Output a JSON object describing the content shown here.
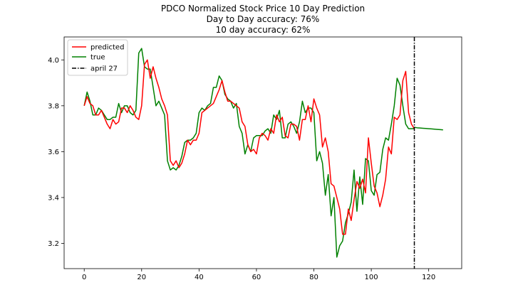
{
  "chart_data": {
    "type": "line",
    "title_lines": [
      "PDCO Normalized Stock Price 10 Day Prediction",
      "Day to Day accuracy: 76%",
      "10 day accuracy: 62%"
    ],
    "xlabel": "",
    "ylabel": "",
    "xlim": [
      -7,
      131.5
    ],
    "ylim": [
      3.09,
      4.1
    ],
    "x_ticks": [
      0,
      20,
      40,
      60,
      80,
      100,
      120
    ],
    "y_ticks": [
      3.2,
      3.4,
      3.6,
      3.8,
      4.0
    ],
    "y_tick_labels": [
      "3.2",
      "3.4",
      "3.6",
      "3.8",
      "4.0"
    ],
    "grid": false,
    "legend_position": "top-left",
    "vline": {
      "name": "april 27",
      "x": 115,
      "color": "#000000",
      "style": "dash-dot"
    },
    "series": [
      {
        "name": "predicted",
        "color": "#ff0000",
        "x": [
          0,
          1,
          2,
          3,
          4,
          5,
          6,
          7,
          8,
          9,
          10,
          11,
          12,
          13,
          14,
          15,
          16,
          17,
          18,
          19,
          20,
          21,
          22,
          23,
          24,
          25,
          26,
          27,
          28,
          29,
          30,
          31,
          32,
          33,
          34,
          35,
          36,
          37,
          38,
          39,
          40,
          41,
          42,
          43,
          44,
          45,
          46,
          47,
          48,
          49,
          50,
          51,
          52,
          53,
          54,
          55,
          56,
          57,
          58,
          59,
          60,
          61,
          62,
          63,
          64,
          65,
          66,
          67,
          68,
          69,
          70,
          71,
          72,
          73,
          74,
          75,
          76,
          77,
          78,
          79,
          80,
          81,
          82,
          83,
          84,
          85,
          86,
          87,
          88,
          89,
          90,
          91,
          92,
          93,
          94,
          95,
          96,
          97,
          98,
          99,
          100,
          101,
          102,
          103,
          104,
          105,
          106,
          107,
          108,
          109,
          110,
          111,
          112,
          113,
          114,
          115
        ],
        "values": [
          3.8,
          3.84,
          3.81,
          3.8,
          3.76,
          3.76,
          3.78,
          3.75,
          3.72,
          3.7,
          3.74,
          3.72,
          3.73,
          3.79,
          3.79,
          3.77,
          3.8,
          3.78,
          3.75,
          3.74,
          3.8,
          3.98,
          4.0,
          3.92,
          3.97,
          3.92,
          3.88,
          3.83,
          3.8,
          3.76,
          3.56,
          3.54,
          3.56,
          3.53,
          3.55,
          3.59,
          3.65,
          3.63,
          3.65,
          3.65,
          3.68,
          3.77,
          3.78,
          3.79,
          3.8,
          3.81,
          3.84,
          3.87,
          3.91,
          3.86,
          3.82,
          3.82,
          3.81,
          3.8,
          3.79,
          3.73,
          3.71,
          3.63,
          3.6,
          3.61,
          3.59,
          3.66,
          3.68,
          3.67,
          3.65,
          3.7,
          3.68,
          3.76,
          3.73,
          3.75,
          3.67,
          3.66,
          3.72,
          3.72,
          3.71,
          3.65,
          3.74,
          3.74,
          3.8,
          3.73,
          3.83,
          3.79,
          3.76,
          3.62,
          3.66,
          3.6,
          3.46,
          3.45,
          3.4,
          3.35,
          3.24,
          3.24,
          3.35,
          3.3,
          3.39,
          3.47,
          3.44,
          3.48,
          3.42,
          3.66,
          3.55,
          3.45,
          3.42,
          3.36,
          3.41,
          3.48,
          3.62,
          3.59,
          3.75,
          3.74,
          3.76,
          3.91,
          3.95,
          3.77,
          3.72,
          3.7
        ]
      },
      {
        "name": "true",
        "color": "#008000",
        "x": [
          0,
          1,
          2,
          3,
          4,
          5,
          6,
          7,
          8,
          9,
          10,
          11,
          12,
          13,
          14,
          15,
          16,
          17,
          18,
          19,
          20,
          21,
          22,
          23,
          24,
          25,
          26,
          27,
          28,
          29,
          30,
          31,
          32,
          33,
          34,
          35,
          36,
          37,
          38,
          39,
          40,
          41,
          42,
          43,
          44,
          45,
          46,
          47,
          48,
          49,
          50,
          51,
          52,
          53,
          54,
          55,
          56,
          57,
          58,
          59,
          60,
          61,
          62,
          63,
          64,
          65,
          66,
          67,
          68,
          69,
          70,
          71,
          72,
          73,
          74,
          75,
          76,
          77,
          78,
          79,
          80,
          81,
          82,
          83,
          84,
          85,
          86,
          87,
          88,
          89,
          90,
          91,
          92,
          93,
          94,
          95,
          96,
          97,
          98,
          99,
          100,
          101,
          102,
          103,
          104,
          105,
          106,
          107,
          108,
          109,
          110,
          111,
          112,
          113,
          114,
          115
        ],
        "values": [
          3.8,
          3.86,
          3.82,
          3.76,
          3.76,
          3.79,
          3.78,
          3.76,
          3.74,
          3.74,
          3.75,
          3.75,
          3.81,
          3.77,
          3.8,
          3.8,
          3.77,
          3.76,
          3.78,
          4.03,
          4.05,
          3.97,
          3.96,
          3.96,
          3.88,
          3.8,
          3.82,
          3.79,
          3.76,
          3.56,
          3.52,
          3.53,
          3.52,
          3.54,
          3.58,
          3.64,
          3.65,
          3.65,
          3.66,
          3.68,
          3.77,
          3.79,
          3.78,
          3.8,
          3.81,
          3.88,
          3.88,
          3.93,
          3.91,
          3.85,
          3.83,
          3.82,
          3.79,
          3.81,
          3.71,
          3.68,
          3.59,
          3.63,
          3.6,
          3.66,
          3.67,
          3.67,
          3.67,
          3.69,
          3.7,
          3.68,
          3.76,
          3.74,
          3.78,
          3.66,
          3.66,
          3.72,
          3.73,
          3.71,
          3.68,
          3.73,
          3.82,
          3.77,
          3.79,
          3.79,
          3.77,
          3.56,
          3.6,
          3.55,
          3.41,
          3.5,
          3.32,
          3.4,
          3.14,
          3.19,
          3.21,
          3.29,
          3.33,
          3.38,
          3.52,
          3.34,
          3.49,
          3.37,
          3.57,
          3.56,
          3.43,
          3.41,
          3.5,
          3.51,
          3.61,
          3.66,
          3.65,
          3.72,
          3.8,
          3.92,
          3.89,
          3.8,
          3.72,
          3.7,
          3.7,
          3.7
        ]
      },
      {
        "name": "true_forecast",
        "color": "#008000",
        "x": [
          115,
          116,
          117,
          118,
          119,
          120,
          121,
          122,
          123,
          124,
          125
        ],
        "values": [
          3.706,
          3.704,
          3.703,
          3.702,
          3.701,
          3.7,
          3.699,
          3.698,
          3.697,
          3.696,
          3.695
        ]
      }
    ]
  }
}
